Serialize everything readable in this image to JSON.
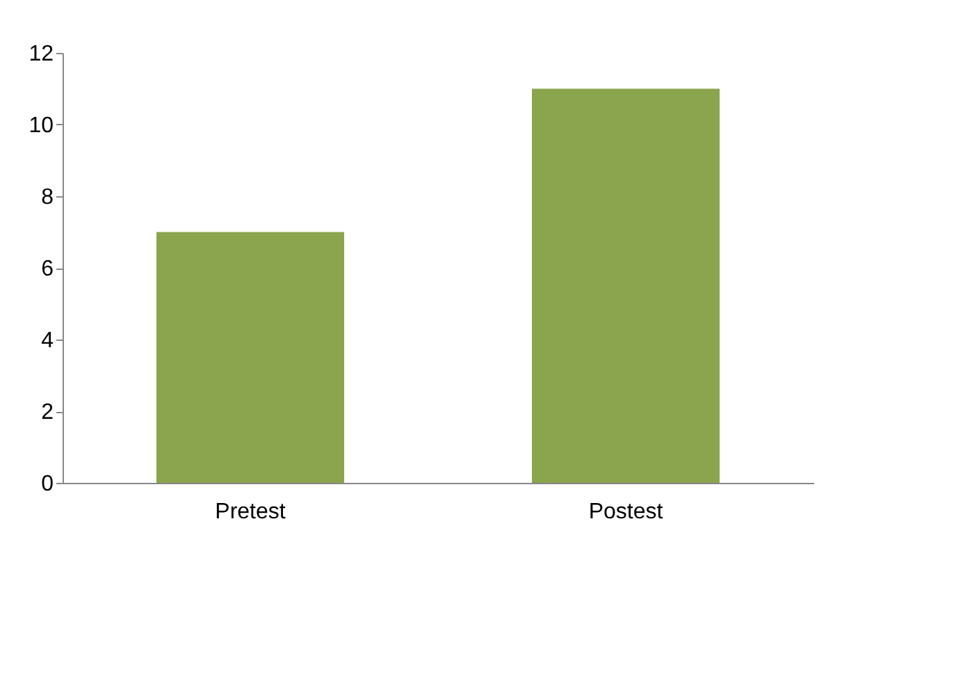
{
  "chart_data": {
    "type": "bar",
    "categories": [
      "Pretest",
      "Postest"
    ],
    "values": [
      7,
      11
    ],
    "color": "#8aa54e",
    "ylim": [
      0,
      12
    ],
    "yticks": [
      0,
      2,
      4,
      6,
      8,
      10,
      12
    ],
    "grid": false
  }
}
